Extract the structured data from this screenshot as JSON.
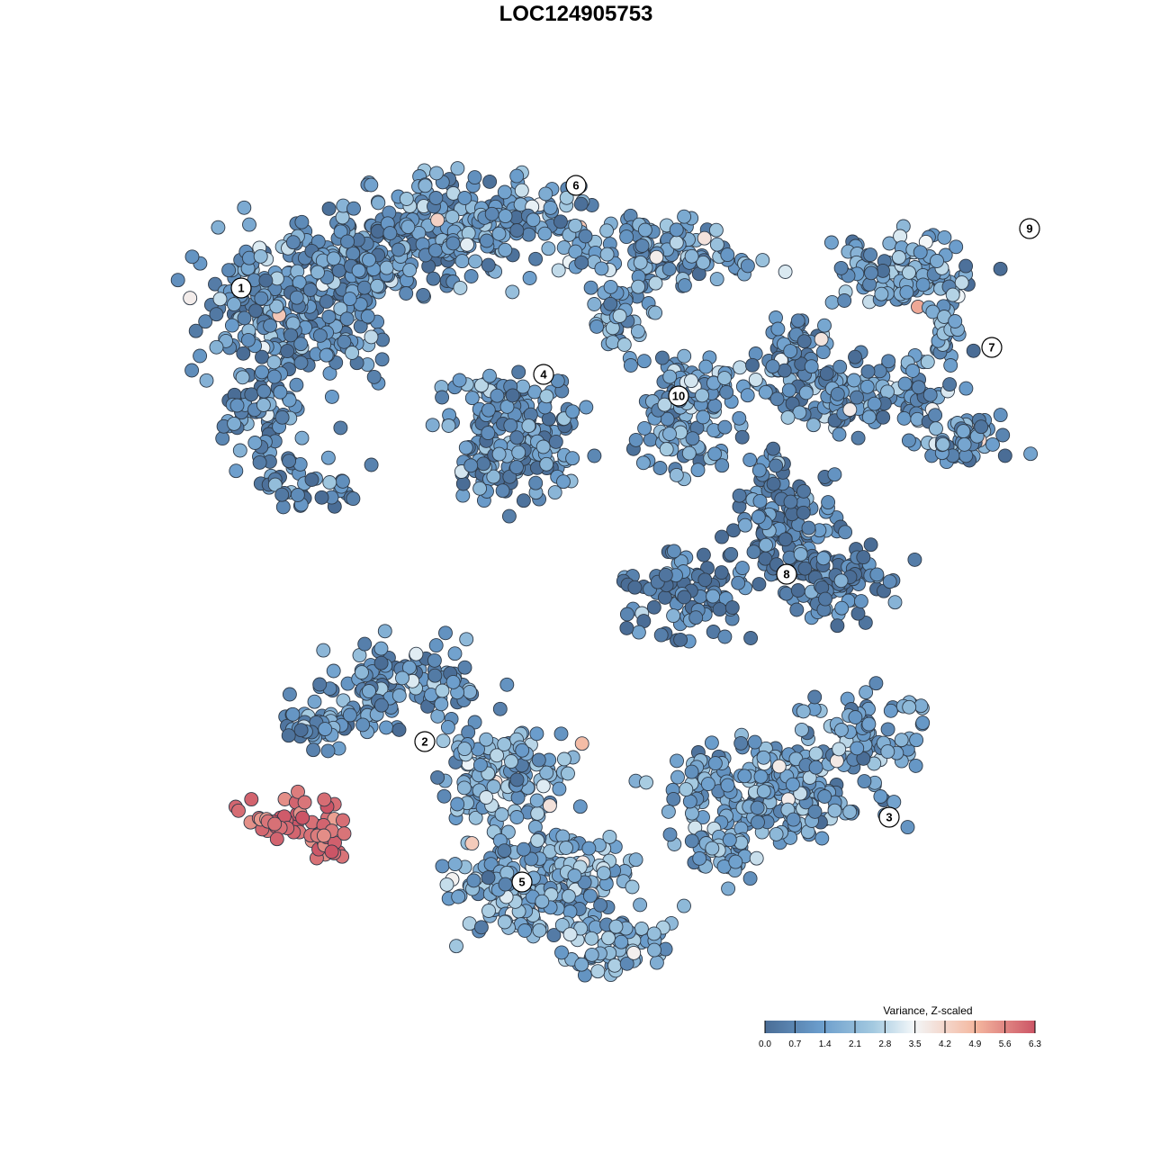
{
  "chart_data": {
    "type": "scatter",
    "title": "LOC124905753",
    "xlabel": "",
    "ylabel": "",
    "grid": false,
    "axes_visible": false,
    "legend": {
      "title": "Variance, Z-scaled",
      "placement": "bottom-right",
      "ticks": [
        "0.0",
        "0.7",
        "1.4",
        "2.1",
        "2.8",
        "3.5",
        "4.2",
        "4.9",
        "5.6",
        "6.3"
      ],
      "range": [
        0,
        6.3
      ],
      "colors": [
        "#4a6d96",
        "#6a9ccb",
        "#a3c9e0",
        "#f3f7f9",
        "#f4b79f",
        "#cc5566"
      ]
    },
    "clusters": [
      {
        "label": "1",
        "x": -6.2,
        "y": 5.0,
        "value_mean": 1.0
      },
      {
        "label": "2",
        "x": -2.8,
        "y": -3.4,
        "value_mean": 1.0
      },
      {
        "label": "3",
        "x": 5.8,
        "y": -4.8,
        "value_mean": 1.4
      },
      {
        "label": "4",
        "x": -0.6,
        "y": 3.4,
        "value_mean": 1.1
      },
      {
        "label": "5",
        "x": -1.0,
        "y": -6.0,
        "value_mean": 1.8
      },
      {
        "label": "6",
        "x": 0.0,
        "y": 6.9,
        "value_mean": 1.4
      },
      {
        "label": "7",
        "x": 7.7,
        "y": 3.9,
        "value_mean": 1.1
      },
      {
        "label": "8",
        "x": 3.9,
        "y": -0.3,
        "value_mean": 0.5
      },
      {
        "label": "9",
        "x": 8.4,
        "y": 6.1,
        "value_mean": 1.6
      },
      {
        "label": "10",
        "x": 1.9,
        "y": 3.0,
        "value_mean": 1.3
      },
      {
        "label": "",
        "x": -9.0,
        "y": -5.7,
        "value_mean": 6.0
      }
    ]
  }
}
